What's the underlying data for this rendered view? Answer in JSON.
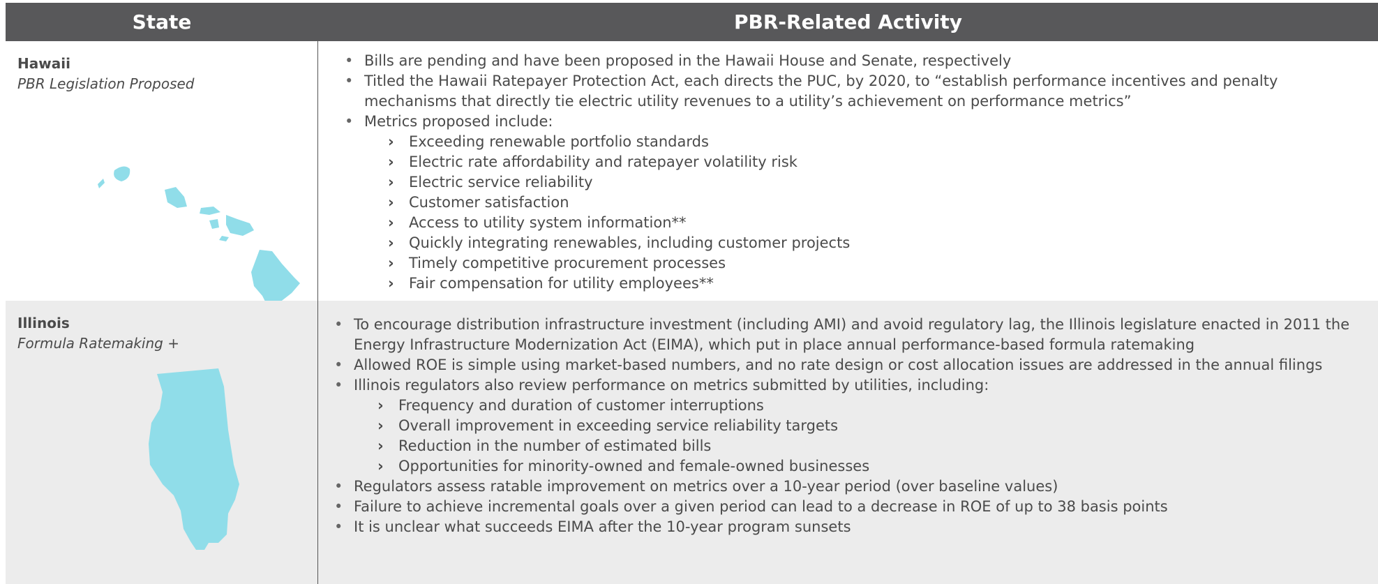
{
  "table": {
    "headers": [
      "State",
      "PBR-Related Activity"
    ],
    "rows": [
      {
        "state": "Hawaii",
        "status": "PBR Legislation Proposed",
        "items": [
          {
            "text": "Bills are pending and have been proposed in the Hawaii House and Senate, respectively"
          },
          {
            "text": "Titled the Hawaii Ratepayer Protection Act, each directs the PUC, by 2020, to “establish performance incentives and penalty mechanisms that directly tie electric utility revenues to a utility’s achievement on performance metrics”"
          },
          {
            "text": "Metrics proposed include:",
            "sub": [
              "Exceeding renewable portfolio standards",
              "Electric rate affordability and ratepayer volatility risk",
              "Electric service reliability",
              "Customer satisfaction",
              "Access to utility system information**",
              "Quickly integrating renewables, including customer projects",
              "Timely competitive procurement processes",
              "Fair compensation for utility employees**"
            ]
          }
        ]
      },
      {
        "state": "Illinois",
        "status": "Formula Ratemaking +",
        "items": [
          {
            "text": "To encourage distribution infrastructure investment (including AMI) and avoid regulatory lag, the Illinois legislature enacted in 2011 the Energy Infrastructure Modernization Act (EIMA), which put in place annual performance-based formula ratemaking"
          },
          {
            "text": "Allowed ROE is simple using market-based numbers, and no rate design or cost allocation issues are addressed in the annual filings"
          },
          {
            "text": "Illinois regulators also review performance on metrics submitted by utilities, including:",
            "sub": [
              "Frequency and duration of customer interruptions",
              "Overall improvement in exceeding service reliability targets",
              "Reduction in the number of estimated bills",
              "Opportunities for minority-owned and female-owned businesses"
            ]
          },
          {
            "text": "Regulators assess ratable improvement on metrics over a 10-year period (over baseline values)"
          },
          {
            "text": "Failure to achieve incremental goals over a given period can lead to a decrease in ROE of up to 38 basis points"
          },
          {
            "text": "It is unclear what succeeds EIMA after the 10-year program sunsets"
          }
        ]
      }
    ]
  }
}
